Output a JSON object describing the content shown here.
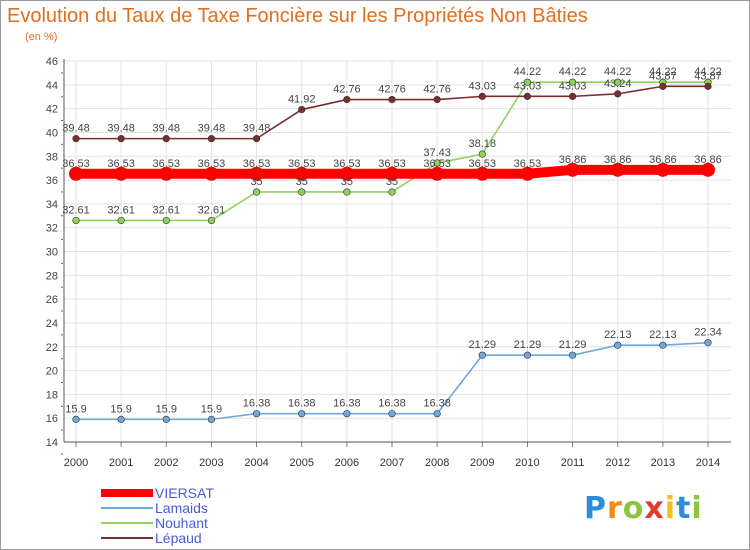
{
  "chart_data": {
    "type": "line",
    "title": "Evolution du Taux de Taxe Foncière sur les Propriétés Non Bâties",
    "ylabel": "(en %)",
    "xlabel": "",
    "ylim": [
      14,
      46
    ],
    "yticks": [
      "14",
      "16",
      "18",
      "20",
      "22",
      "24",
      "26",
      "28",
      "30",
      "32",
      "34",
      "36",
      "38",
      "40",
      "42",
      "44",
      "46"
    ],
    "categories": [
      "2000",
      "2001",
      "2002",
      "2003",
      "2004",
      "2005",
      "2006",
      "2007",
      "2008",
      "2009",
      "2010",
      "2011",
      "2012",
      "2013",
      "2014"
    ],
    "grid": true,
    "legend_position": "bottom-left",
    "series": [
      {
        "name": "VIERSAT",
        "color": "#ff0000",
        "values": [
          36.53,
          36.53,
          36.53,
          36.53,
          36.53,
          36.53,
          36.53,
          36.53,
          36.53,
          36.53,
          36.53,
          36.86,
          36.86,
          36.86,
          36.86
        ],
        "labels": [
          "36.53",
          "36.53",
          "36.53",
          "36.53",
          "36.53",
          "36.53",
          "36.53",
          "36.53",
          "36.53",
          "36.53",
          "36.53",
          "36.86",
          "36.86",
          "36.86",
          "36.86"
        ]
      },
      {
        "name": "Lamaids",
        "color": "#6fa8dc",
        "values": [
          15.9,
          15.9,
          15.9,
          15.9,
          16.38,
          16.38,
          16.38,
          16.38,
          16.38,
          21.29,
          21.29,
          21.29,
          22.13,
          22.13,
          22.34
        ],
        "labels": [
          "15.9",
          "15.9",
          "15.9",
          "15.9",
          "16.38",
          "16.38",
          "16.38",
          "16.38",
          "16.38",
          "21.29",
          "21.29",
          "21.29",
          "22.13",
          "22.13",
          "22.34"
        ]
      },
      {
        "name": "Nouhant",
        "color": "#8fd45a",
        "values": [
          32.61,
          32.61,
          32.61,
          32.61,
          35,
          35,
          35,
          35,
          37.43,
          38.18,
          44.22,
          44.22,
          44.22,
          44.22,
          44.22
        ],
        "labels": [
          "32.61",
          "32.61",
          "32.61",
          "32.61",
          "35",
          "35",
          "35",
          "35",
          "37.43",
          "38.18",
          "44.22",
          "44.22",
          "44.22",
          "44.22",
          "44.22"
        ]
      },
      {
        "name": "Lépaud",
        "color": "#7a2e2e",
        "values": [
          39.48,
          39.48,
          39.48,
          39.48,
          39.48,
          41.92,
          42.76,
          42.76,
          42.76,
          43.03,
          43.03,
          43.03,
          43.24,
          43.87,
          43.87
        ],
        "labels": [
          "39.48",
          "39.48",
          "39.48",
          "39.48",
          "39.48",
          "41.92",
          "42.76",
          "42.76",
          "42.76",
          "43.03",
          "43.03",
          "43.03",
          "43.24",
          "43.87",
          "43.87"
        ]
      }
    ]
  },
  "logo": {
    "text": "Proxiti"
  }
}
